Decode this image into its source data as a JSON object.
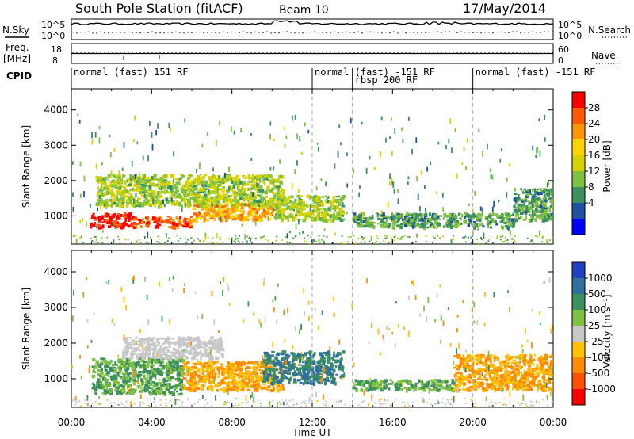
{
  "header": {
    "title": "South Pole Station (fitACF)",
    "beam": "Beam 10",
    "date": "17/May/2014"
  },
  "aux_panels": {
    "nsky_label": "N.Sky",
    "nsearch_label": "N.Search",
    "freq_label_1": "Freq.",
    "freq_label_2": "[MHz]",
    "nave_label": "Nave",
    "cpid_label": "CPID",
    "noise_left_ticks": [
      "10^5",
      "10^0"
    ],
    "noise_right_ticks": [
      "10^5",
      "10^0"
    ],
    "freq_left_ticks": [
      "18",
      "8"
    ],
    "nave_right_ticks": [
      "60",
      "0"
    ]
  },
  "cpid_segments": [
    {
      "label": "normal (fast) 151 RF",
      "start_hour": 0.0
    },
    {
      "label": "normal",
      "start_hour": 12.0
    },
    {
      "label": "(fast) -151 RF",
      "start_hour": 14.0
    },
    {
      "label": "rbsp 200 RF",
      "start_hour": 14.0
    },
    {
      "label": "normal (fast) -151 RF",
      "start_hour": 20.0
    }
  ],
  "chart_data": [
    {
      "type": "heatmap",
      "panel": "power",
      "xlabel": "",
      "ylabel": "Slant Range [km]",
      "xlim": [
        0,
        24
      ],
      "ylim": [
        200,
        4600
      ],
      "yticks": [
        "1000",
        "2000",
        "3000",
        "4000"
      ],
      "colorbar_label": "Power [dB]",
      "colorbar_ticks": [
        "28",
        "24",
        "20",
        "16",
        "12",
        "8",
        "4"
      ],
      "colorbar_colors": [
        "#ff0000",
        "#ff5a00",
        "#ff9600",
        "#ffd200",
        "#d2d200",
        "#80c040",
        "#3c9060",
        "#2050a0",
        "#0000ff"
      ],
      "echo_regions": [
        {
          "t0": 0.9,
          "t1": 3.0,
          "r0": 700,
          "r1": 1100,
          "value": 28
        },
        {
          "t0": 3.0,
          "t1": 6.0,
          "r0": 700,
          "r1": 1000,
          "value": 24
        },
        {
          "t0": 6.0,
          "t1": 10.0,
          "r0": 900,
          "r1": 1400,
          "value": 20
        },
        {
          "t0": 1.2,
          "t1": 10.5,
          "r0": 1300,
          "r1": 2200,
          "value": 12
        },
        {
          "t0": 10.0,
          "t1": 13.5,
          "r0": 900,
          "r1": 1600,
          "value": 12
        },
        {
          "t0": 14.0,
          "t1": 22.0,
          "r0": 700,
          "r1": 1100,
          "value": 8
        },
        {
          "t0": 22.0,
          "t1": 24.0,
          "r0": 900,
          "r1": 1800,
          "value": 8
        }
      ]
    },
    {
      "type": "heatmap",
      "panel": "velocity",
      "xlabel": "Time UT",
      "ylabel": "Slant Range [km]",
      "xlim": [
        0,
        24
      ],
      "ylim": [
        200,
        4600
      ],
      "xticks": [
        "00:00",
        "04:00",
        "08:00",
        "12:00",
        "16:00",
        "20:00",
        "00:00"
      ],
      "yticks": [
        "1000",
        "2000",
        "3000",
        "4000"
      ],
      "colorbar_label": "Velocity [m s⁻¹]",
      "colorbar_ticks": [
        "1000",
        "500",
        "100",
        "25",
        "-25",
        "-100",
        "-500",
        "-1000"
      ],
      "colorbar_colors": [
        "#2040c0",
        "#3070a0",
        "#3c9060",
        "#80c040",
        "#c8c8c8",
        "#ffc000",
        "#ff8c00",
        "#ff5000",
        "#ff0000"
      ],
      "echo_regions": [
        {
          "t0": 1.0,
          "t1": 5.5,
          "r0": 600,
          "r1": 1600,
          "value": 100
        },
        {
          "t0": 2.5,
          "t1": 7.5,
          "r0": 1600,
          "r1": 2200,
          "value": 0
        },
        {
          "t0": 5.5,
          "t1": 10.5,
          "r0": 700,
          "r1": 1500,
          "value": -100
        },
        {
          "t0": 9.5,
          "t1": 13.5,
          "r0": 900,
          "r1": 1800,
          "value": 500
        },
        {
          "t0": 14.0,
          "t1": 19.0,
          "r0": 700,
          "r1": 1000,
          "value": 100
        },
        {
          "t0": 19.0,
          "t1": 24.0,
          "r0": 700,
          "r1": 1700,
          "value": -100
        }
      ]
    }
  ]
}
